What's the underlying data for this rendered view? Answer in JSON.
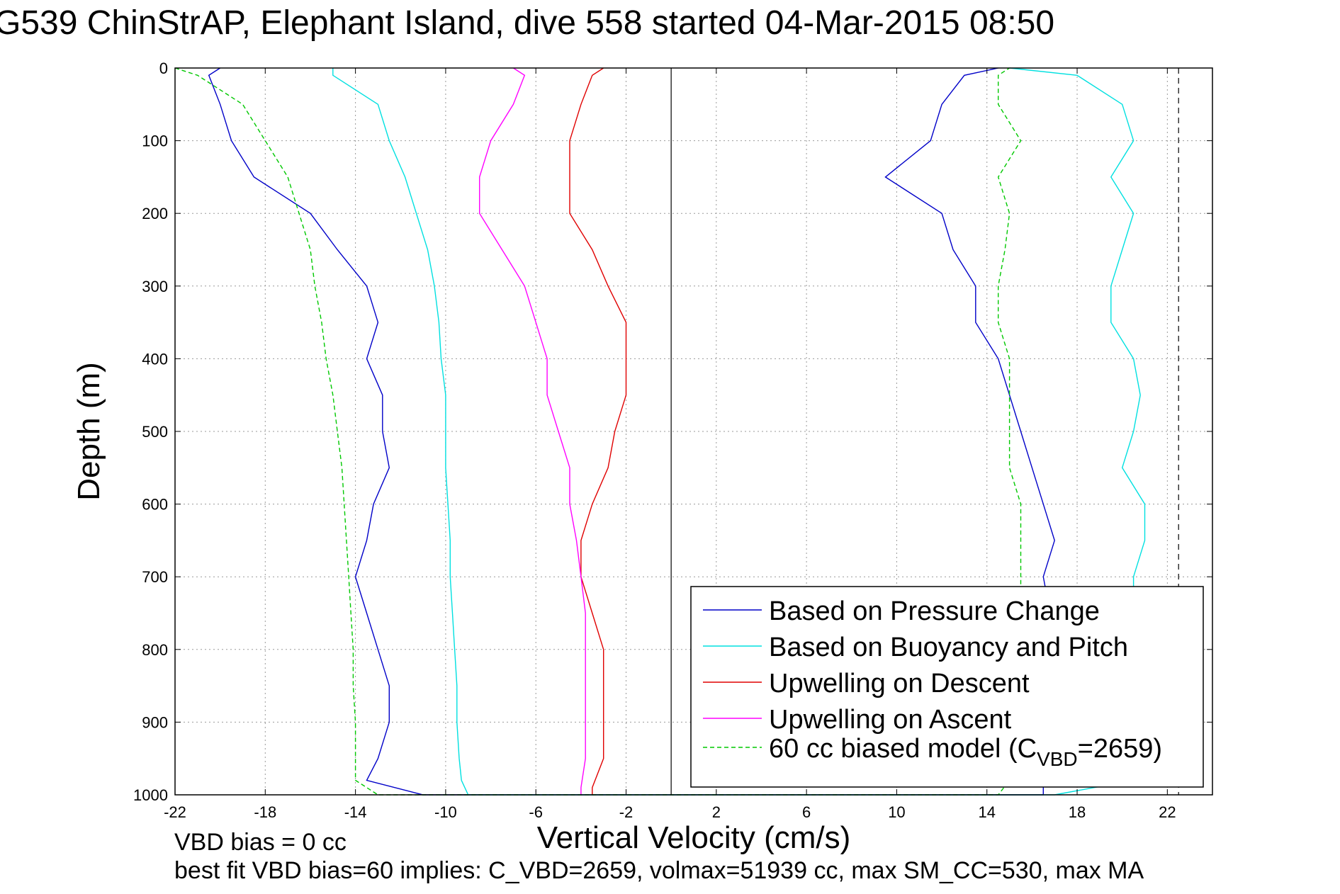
{
  "chart_data": {
    "type": "line",
    "title": "G539 ChinStrAP, Elephant Island, dive 558 started 04-Mar-2015 08:50",
    "xlabel": "Vertical Velocity (cm/s)",
    "ylabel": "Depth (m)",
    "xlim": [
      -22,
      24
    ],
    "ylim": [
      1000,
      0
    ],
    "y_reversed": true,
    "xticks": [
      -22,
      -18,
      -14,
      -10,
      -6,
      -2,
      2,
      6,
      10,
      14,
      18,
      22
    ],
    "yticks": [
      0,
      100,
      200,
      300,
      400,
      500,
      600,
      700,
      800,
      900,
      1000
    ],
    "grid": true,
    "legend_position": "bottom-right",
    "vertical_lines": [
      {
        "x": 0,
        "style": "solid"
      },
      {
        "x": 22.5,
        "style": "dashed"
      }
    ],
    "footnotes": [
      "VBD bias = 0 cc",
      "best fit VBD bias=60 implies: C_VBD=2659, volmax=51939 cc, max SM_CC=530, max MA"
    ],
    "series": [
      {
        "name": "Based on Pressure Change",
        "color": "#0000c8",
        "style": "solid",
        "depth": [
          0,
          10,
          50,
          100,
          150,
          200,
          250,
          300,
          350,
          400,
          450,
          500,
          550,
          600,
          650,
          700,
          750,
          800,
          850,
          900,
          950,
          980,
          1000,
          1000,
          980,
          950,
          900,
          850,
          800,
          750,
          700,
          650,
          600,
          550,
          500,
          450,
          400,
          350,
          300,
          250,
          200,
          150,
          100,
          50,
          10,
          0
        ],
        "velocity": [
          -20,
          -20.5,
          -20,
          -19.5,
          -18.5,
          -16,
          -14.8,
          -13.5,
          -13,
          -13.5,
          -12.8,
          -12.8,
          -12.5,
          -13.2,
          -13.5,
          -14,
          -13.5,
          -13,
          -12.5,
          -12.5,
          -13,
          -13.5,
          -11,
          16.5,
          16.5,
          16.5,
          16.5,
          16.5,
          16.8,
          16.8,
          16.5,
          17,
          16.5,
          16,
          15.5,
          15,
          14.5,
          13.5,
          13.5,
          12.5,
          12,
          9.5,
          11.5,
          12,
          13,
          14.5
        ]
      },
      {
        "name": "Based on Buoyancy and Pitch",
        "color": "#00e0e0",
        "style": "solid",
        "depth": [
          0,
          10,
          50,
          100,
          150,
          200,
          250,
          300,
          350,
          400,
          450,
          500,
          550,
          600,
          650,
          700,
          750,
          800,
          850,
          900,
          950,
          980,
          1000,
          1000,
          980,
          950,
          900,
          850,
          800,
          750,
          700,
          650,
          600,
          550,
          500,
          450,
          400,
          350,
          300,
          250,
          200,
          150,
          100,
          50,
          10,
          0
        ],
        "velocity": [
          -15,
          -15,
          -13,
          -12.5,
          -11.8,
          -11.3,
          -10.8,
          -10.5,
          -10.3,
          -10.2,
          -10,
          -10,
          -10,
          -9.9,
          -9.8,
          -9.8,
          -9.7,
          -9.6,
          -9.5,
          -9.5,
          -9.4,
          -9.3,
          -9,
          17,
          20.5,
          20.5,
          20.5,
          20.5,
          20.5,
          20.5,
          20.5,
          21,
          21,
          20,
          20.5,
          20.8,
          20.5,
          19.5,
          19.5,
          20,
          20.5,
          19.5,
          20.5,
          20,
          18,
          15
        ]
      },
      {
        "name": "Upwelling on Descent",
        "color": "#e00000",
        "style": "solid",
        "depth": [
          0,
          10,
          50,
          100,
          150,
          200,
          250,
          300,
          350,
          400,
          450,
          500,
          550,
          600,
          650,
          700,
          750,
          800,
          850,
          900,
          950,
          990,
          1000
        ],
        "velocity": [
          -3,
          -3.5,
          -4,
          -4.5,
          -4.5,
          -4.5,
          -3.5,
          -2.8,
          -2,
          -2,
          -2,
          -2.5,
          -2.8,
          -3.5,
          -4,
          -4,
          -3.5,
          -3,
          -3,
          -3,
          -3,
          -3.5,
          -3.5
        ]
      },
      {
        "name": "Upwelling on Ascent",
        "color": "#ff00ff",
        "style": "solid",
        "depth": [
          0,
          10,
          50,
          100,
          150,
          200,
          250,
          300,
          350,
          400,
          450,
          500,
          550,
          600,
          650,
          700,
          750,
          800,
          850,
          900,
          950,
          990,
          1000
        ],
        "velocity": [
          -7,
          -6.5,
          -7,
          -8,
          -8.5,
          -8.5,
          -7.5,
          -6.5,
          -6,
          -5.5,
          -5.5,
          -5,
          -4.5,
          -4.5,
          -4.2,
          -4,
          -3.8,
          -3.8,
          -3.8,
          -3.8,
          -3.8,
          -4,
          -4
        ]
      },
      {
        "name": "60 cc biased model (C_VBD=2659)",
        "name_main": "60 cc biased model (C",
        "name_sub": "VBD",
        "name_end": "=2659)",
        "color": "#00c800",
        "style": "dashed",
        "depth": [
          0,
          10,
          50,
          100,
          150,
          200,
          250,
          300,
          350,
          400,
          450,
          500,
          550,
          600,
          650,
          700,
          750,
          800,
          850,
          900,
          950,
          980,
          1000,
          1000,
          980,
          950,
          900,
          850,
          800,
          750,
          700,
          650,
          600,
          550,
          500,
          450,
          400,
          350,
          300,
          250,
          200,
          150,
          100,
          50,
          10,
          0
        ],
        "velocity": [
          -22,
          -21,
          -19,
          -18,
          -17,
          -16.5,
          -16,
          -15.8,
          -15.5,
          -15.3,
          -15,
          -14.8,
          -14.6,
          -14.5,
          -14.4,
          -14.3,
          -14.2,
          -14.1,
          -14.1,
          -14,
          -14,
          -14,
          -13,
          14.5,
          15,
          15.5,
          15.5,
          15.5,
          15.5,
          15.5,
          15.5,
          15.5,
          15.5,
          15,
          15,
          15,
          15,
          14.5,
          14.5,
          14.8,
          15,
          14.5,
          15.5,
          14.5,
          14.5,
          15
        ]
      }
    ]
  }
}
